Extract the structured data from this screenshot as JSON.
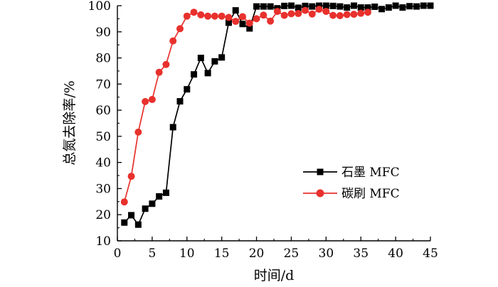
{
  "chart_data": {
    "type": "line",
    "xlabel": "时间/d",
    "ylabel": "总氮去除率/%",
    "xlim": [
      0,
      45
    ],
    "ylim": [
      10,
      100
    ],
    "x_ticks": [
      0,
      5,
      10,
      15,
      20,
      25,
      30,
      35,
      40,
      45
    ],
    "y_ticks": [
      10,
      20,
      30,
      40,
      50,
      60,
      70,
      80,
      90,
      100
    ],
    "grid": false,
    "legend_position": "center-right",
    "series": [
      {
        "name": "石墨 MFC",
        "color": "#000000",
        "marker": "square",
        "x": [
          1,
          2,
          3,
          4,
          5,
          6,
          7,
          8,
          9,
          10,
          11,
          12,
          13,
          14,
          15,
          16,
          17,
          18,
          19,
          20,
          21,
          22,
          23,
          24,
          25,
          26,
          27,
          28,
          29,
          30,
          31,
          32,
          33,
          34,
          35,
          36,
          37,
          38,
          39,
          40,
          41,
          42,
          43,
          44,
          45
        ],
        "y": [
          17,
          19.8,
          16.2,
          22.3,
          24.2,
          27,
          28.4,
          53.5,
          63.4,
          68,
          73.7,
          80,
          74.2,
          78.7,
          80.2,
          93.5,
          98.2,
          93,
          91.3,
          99.7,
          99.7,
          99.7,
          99,
          99.9,
          100,
          99.2,
          99.9,
          99.7,
          100,
          100,
          99.9,
          99.7,
          99.3,
          100,
          99.3,
          99.3,
          99.6,
          98.7,
          99.3,
          100,
          99.3,
          99.8,
          99.7,
          100,
          100
        ]
      },
      {
        "name": "碳刷 MFC",
        "color": "#e8312d",
        "marker": "circle",
        "x": [
          1,
          2,
          3,
          4,
          5,
          6,
          7,
          8,
          9,
          10,
          11,
          12,
          13,
          14,
          15,
          16,
          17,
          18,
          19,
          20,
          21,
          22,
          23,
          24,
          25,
          26,
          27,
          28,
          29,
          30,
          31,
          32,
          33,
          34,
          35,
          36
        ],
        "y": [
          24.9,
          34.7,
          51.6,
          63.3,
          64.1,
          74.5,
          77.5,
          86.5,
          91.2,
          96,
          97.5,
          96.5,
          96,
          96,
          96,
          95.5,
          94,
          95.8,
          93.3,
          95,
          96.4,
          94.1,
          97.8,
          96.3,
          96.9,
          97,
          98.2,
          96.8,
          98.6,
          97.8,
          96.3,
          96.2,
          96.6,
          96.7,
          97.1,
          97.5
        ]
      }
    ]
  }
}
